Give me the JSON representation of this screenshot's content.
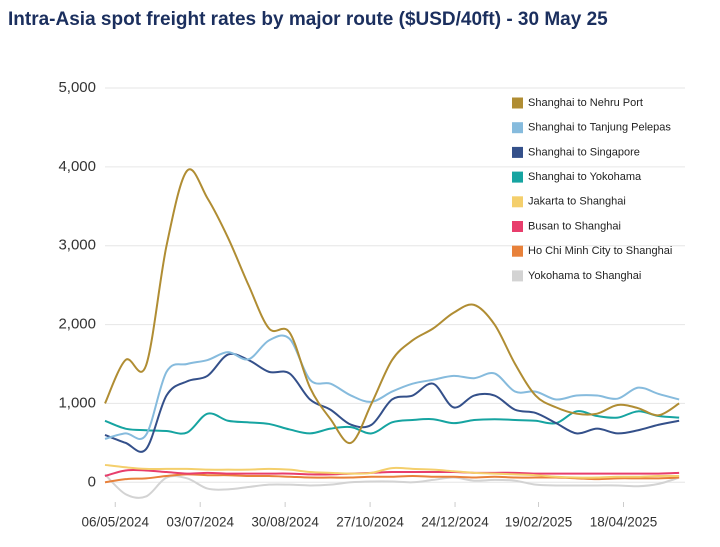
{
  "chart_data": {
    "type": "line",
    "title": "Intra-Asia spot freight rates by major route ($USD/40ft) - 30 May 25",
    "x": [
      "29/04/2024",
      "13/05/2024",
      "27/05/2024",
      "10/06/2024",
      "24/06/2024",
      "08/07/2024",
      "22/07/2024",
      "05/08/2024",
      "19/08/2024",
      "02/09/2024",
      "16/09/2024",
      "30/09/2024",
      "14/10/2024",
      "28/10/2024",
      "11/11/2024",
      "25/11/2024",
      "09/12/2024",
      "23/12/2024",
      "06/01/2025",
      "20/01/2025",
      "03/02/2025",
      "17/02/2025",
      "03/03/2025",
      "17/03/2025",
      "31/03/2025",
      "14/04/2025",
      "28/04/2025",
      "12/05/2025",
      "26/05/2025"
    ],
    "xlim": [
      "29/04/2024",
      "30/05/2025"
    ],
    "xticks": [
      "06/05/2024",
      "03/07/2024",
      "30/08/2024",
      "27/10/2024",
      "24/12/2024",
      "19/02/2025",
      "18/04/2025"
    ],
    "ylim": [
      -250,
      5000
    ],
    "yticks": [
      0,
      {
        "value": 1000,
        "label": "1,000"
      },
      {
        "value": 2000,
        "label": "2,000"
      },
      {
        "value": 3000,
        "label": "3,000"
      },
      {
        "value": 4000,
        "label": "4,000"
      },
      {
        "value": 5000,
        "label": "5,000"
      }
    ],
    "grid": true,
    "legend": "top-right",
    "series": [
      {
        "name": "Shanghai to Nehru Port",
        "color": "#b08d33",
        "values": [
          1000,
          1550,
          1480,
          3000,
          3950,
          3600,
          3100,
          2500,
          1950,
          1900,
          1200,
          800,
          500,
          1000,
          1550,
          1800,
          1950,
          2150,
          2250,
          2000,
          1500,
          1100,
          950,
          870,
          870,
          980,
          940,
          850,
          1000
        ]
      },
      {
        "name": "Shanghai to Tanjung Pelepas",
        "color": "#86bbdd",
        "values": [
          550,
          620,
          600,
          1400,
          1500,
          1550,
          1650,
          1560,
          1800,
          1820,
          1300,
          1250,
          1100,
          1020,
          1150,
          1250,
          1300,
          1350,
          1320,
          1380,
          1150,
          1150,
          1050,
          1100,
          1100,
          1060,
          1200,
          1120,
          1050
        ]
      },
      {
        "name": "Shanghai to Singapore",
        "color": "#34508a",
        "values": [
          600,
          500,
          420,
          1100,
          1280,
          1350,
          1620,
          1550,
          1400,
          1380,
          1050,
          920,
          730,
          730,
          1050,
          1100,
          1250,
          950,
          1100,
          1100,
          920,
          880,
          750,
          620,
          680,
          620,
          660,
          730,
          780
        ]
      },
      {
        "name": "Shanghai to Yokohama",
        "color": "#16a4a1",
        "values": [
          780,
          680,
          660,
          650,
          630,
          870,
          780,
          760,
          740,
          670,
          620,
          680,
          700,
          620,
          760,
          790,
          800,
          750,
          790,
          800,
          790,
          780,
          750,
          900,
          840,
          820,
          900,
          840,
          820
        ]
      },
      {
        "name": "Jakarta to Shanghai",
        "color": "#f4cf6c",
        "values": [
          220,
          190,
          170,
          170,
          170,
          160,
          160,
          160,
          170,
          160,
          130,
          120,
          110,
          120,
          180,
          170,
          160,
          140,
          120,
          110,
          100,
          90,
          70,
          60,
          60,
          70,
          70,
          80,
          80
        ]
      },
      {
        "name": "Busan to Shanghai",
        "color": "#e83e6c",
        "values": [
          80,
          150,
          150,
          130,
          110,
          120,
          110,
          110,
          110,
          110,
          100,
          100,
          110,
          120,
          130,
          130,
          130,
          130,
          120,
          120,
          120,
          110,
          110,
          110,
          110,
          110,
          110,
          110,
          120
        ]
      },
      {
        "name": "Ho Chi Minh City to Shanghai",
        "color": "#e8813a",
        "values": [
          0,
          40,
          50,
          80,
          100,
          90,
          90,
          80,
          80,
          70,
          60,
          60,
          60,
          70,
          70,
          80,
          70,
          70,
          60,
          70,
          60,
          60,
          60,
          50,
          40,
          50,
          50,
          50,
          60
        ]
      },
      {
        "name": "Yokohama to Shanghai",
        "color": "#d3d3d3",
        "values": [
          100,
          -150,
          -180,
          60,
          50,
          -80,
          -90,
          -60,
          -30,
          -30,
          -40,
          -30,
          0,
          10,
          10,
          0,
          30,
          60,
          20,
          30,
          20,
          -30,
          -40,
          -40,
          -40,
          -40,
          -50,
          -20,
          60
        ]
      }
    ]
  }
}
